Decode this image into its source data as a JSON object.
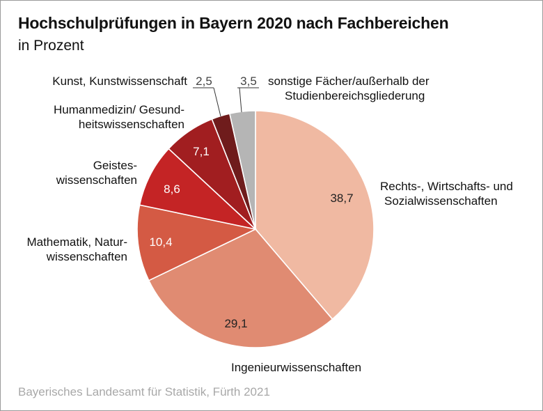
{
  "title": "Hochschulprüfungen in Bayern 2020 nach Fachbereichen",
  "subtitle": "in Prozent",
  "source": "Bayerisches Landesamt für Statistik, Fürth 2021",
  "chart_data": {
    "type": "pie",
    "title": "Hochschulprüfungen in Bayern 2020 nach Fachbereichen",
    "subtitle": "in Prozent",
    "unit": "in Prozent",
    "start": "12 o'clock",
    "direction": "clockwise",
    "slices": [
      {
        "label": "Rechts-, Wirtschafts- und Sozialwissenschaften",
        "value": 38.7,
        "value_label": "38,7",
        "color": "#f0b9a2"
      },
      {
        "label": "Ingenieurwissenschaften",
        "value": 29.1,
        "value_label": "29,1",
        "color": "#e08b72"
      },
      {
        "label": "Mathematik, Naturwissenschaften",
        "value": 10.4,
        "value_label": "10,4",
        "color": "#d45a44"
      },
      {
        "label": "Geisteswissenschaften",
        "value": 8.6,
        "value_label": "8,6",
        "color": "#c42425"
      },
      {
        "label": "Humanmedizin/ Gesundheitswissenschaften",
        "value": 7.1,
        "value_label": "7,1",
        "color": "#a11e20"
      },
      {
        "label": "Kunst, Kunstwissenschaft",
        "value": 2.5,
        "value_label": "2,5",
        "color": "#6f1c1c"
      },
      {
        "label": "sonstige Fächer/außerhalb der Studienbereichsgliederung",
        "value": 3.5,
        "value_label": "3,5",
        "color": "#b5b5b5"
      }
    ],
    "category_label_lines": [
      [
        "Rechts-, Wirtschafts- und",
        "Sozialwissenschaften"
      ],
      [
        "Ingenieurwissenschaften"
      ],
      [
        "Mathematik, Natur-",
        "wissenschaften"
      ],
      [
        "Geistes-",
        "wissenschaften"
      ],
      [
        "Humanmedizin/ Gesund-",
        "heitswissenschaften"
      ],
      [
        "Kunst, Kunstwissenschaft"
      ],
      [
        "sonstige Fächer/außerhalb der",
        "Studienbereichsgliederung"
      ]
    ],
    "value_label_colors": [
      "#222222",
      "#222222",
      "#ffffff",
      "#ffffff",
      "#ffffff",
      "#444444",
      "#444444"
    ]
  }
}
